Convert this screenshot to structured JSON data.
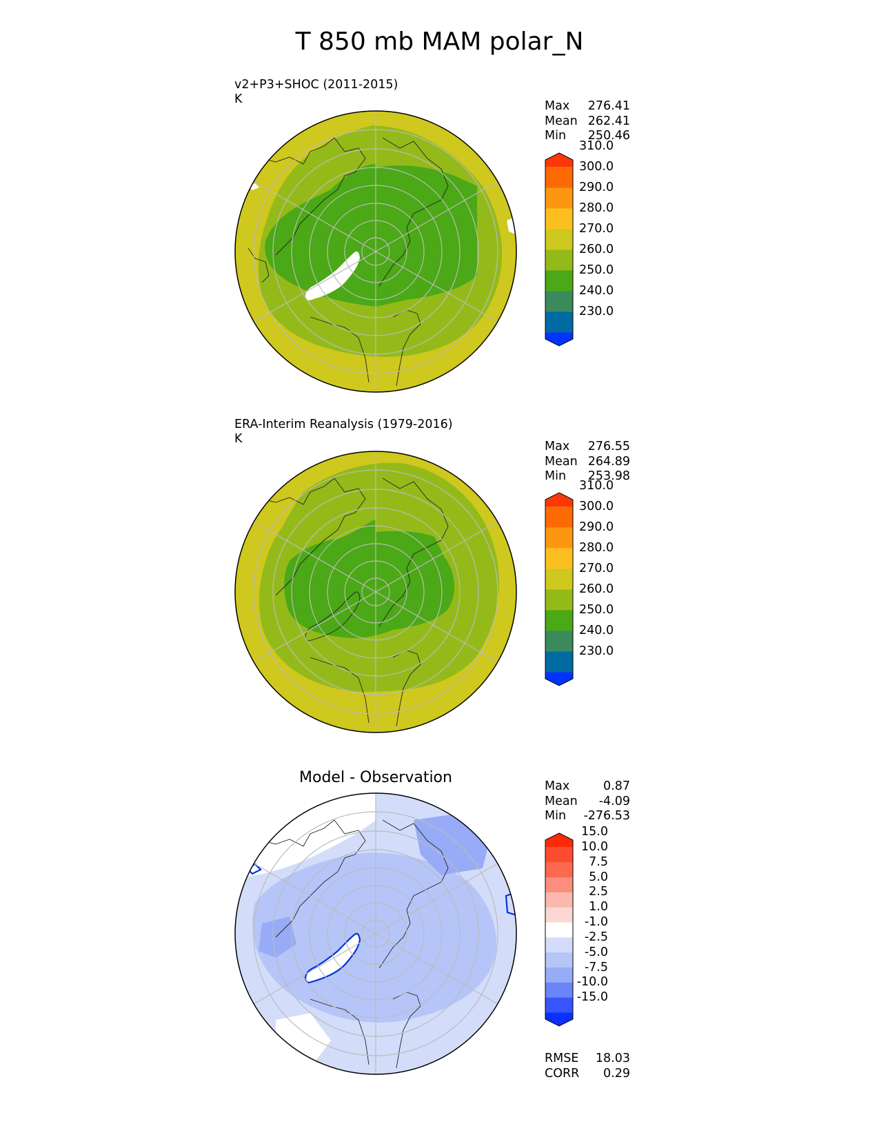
{
  "title": "T 850 mb MAM polar_N",
  "panels": [
    {
      "id": "model",
      "title_line1": "v2+P3+SHOC (2011-2015)",
      "title_line2": "K",
      "stats": [
        {
          "label": "Max",
          "value": "276.41"
        },
        {
          "label": "Mean",
          "value": "262.41"
        },
        {
          "label": "Min",
          "value": "250.46"
        }
      ]
    },
    {
      "id": "obs",
      "title_line1": "ERA-Interim Reanalysis (1979-2016)",
      "title_line2": "K",
      "stats": [
        {
          "label": "Max",
          "value": "276.55"
        },
        {
          "label": "Mean",
          "value": "264.89"
        },
        {
          "label": "Min",
          "value": "253.98"
        }
      ]
    },
    {
      "id": "diff",
      "title": "Model - Observation",
      "stats": [
        {
          "label": "Max",
          "value": "0.87"
        },
        {
          "label": "Mean",
          "value": "-4.09"
        },
        {
          "label": "Min",
          "value": "-276.53"
        }
      ],
      "extra_stats": [
        {
          "label": "RMSE",
          "value": "18.03"
        },
        {
          "label": "CORR",
          "value": "0.29"
        }
      ]
    }
  ],
  "colorbar_abs": {
    "levels": [
      "230.0",
      "240.0",
      "250.0",
      "260.0",
      "270.0",
      "280.0",
      "290.0",
      "300.0",
      "310.0"
    ],
    "colors": [
      "#0033ff",
      "#006ba3",
      "#3a8a5e",
      "#4ba816",
      "#94ba1a",
      "#cfc81e",
      "#fbc020",
      "#fd9712",
      "#fd6a04",
      "#fd3808"
    ],
    "under_color": "#0033ff",
    "over_color": "#fd2a08"
  },
  "colorbar_diff": {
    "levels": [
      "-15.0",
      "-10.0",
      "-7.5",
      "-5.0",
      "-2.5",
      "-1.0",
      "1.0",
      "2.5",
      "5.0",
      "7.5",
      "10.0",
      "15.0"
    ],
    "colors": [
      "#0a30ff",
      "#3655fc",
      "#6a84f9",
      "#98abf6",
      "#b6c5f8",
      "#d3ddfa",
      "#ffffff",
      "#fcd8d4",
      "#fcb7ae",
      "#fc8e7e",
      "#fc6850",
      "#fc4c30",
      "#fc2a08"
    ],
    "under_color": "#0a30ff",
    "over_color": "#fc2a08"
  },
  "chart_data": [
    {
      "type": "heatmap",
      "projection": "north polar stereographic",
      "title": "v2+P3+SHOC (2011-2015)",
      "units": "K",
      "field_summary": {
        "max": 276.41,
        "mean": 262.41,
        "min": 250.46
      },
      "color_levels": [
        230,
        240,
        250,
        260,
        270,
        280,
        290,
        300,
        310
      ],
      "grid": true,
      "legend_placement": "right"
    },
    {
      "type": "heatmap",
      "projection": "north polar stereographic",
      "title": "ERA-Interim Reanalysis (1979-2016)",
      "units": "K",
      "field_summary": {
        "max": 276.55,
        "mean": 264.89,
        "min": 253.98
      },
      "color_levels": [
        230,
        240,
        250,
        260,
        270,
        280,
        290,
        300,
        310
      ],
      "grid": true,
      "legend_placement": "right"
    },
    {
      "type": "heatmap",
      "projection": "north polar stereographic",
      "title": "Model - Observation",
      "field_summary": {
        "max": 0.87,
        "mean": -4.09,
        "min": -276.53,
        "rmse": 18.03,
        "corr": 0.29
      },
      "color_levels": [
        -15,
        -10,
        -7.5,
        -5,
        -2.5,
        -1,
        1,
        2.5,
        5,
        7.5,
        10,
        15
      ],
      "grid": true,
      "legend_placement": "right"
    }
  ]
}
